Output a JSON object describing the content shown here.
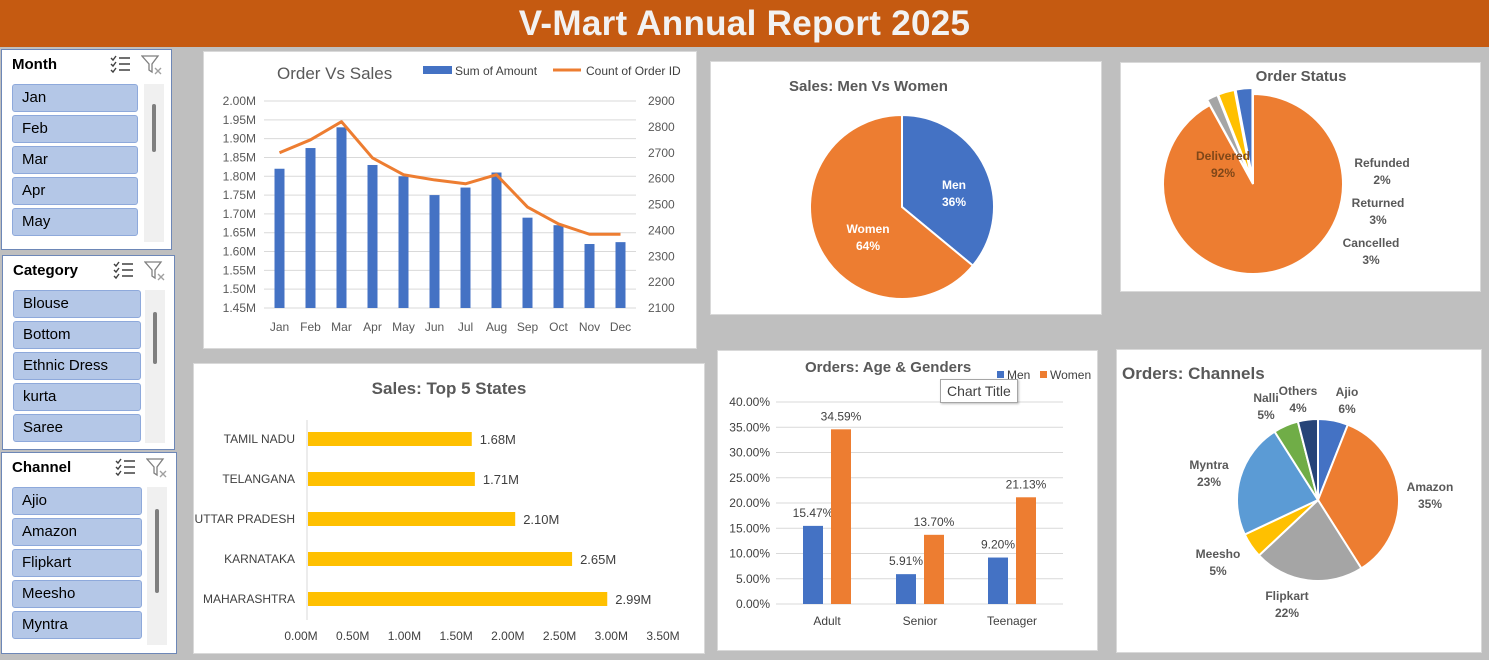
{
  "title": "V-Mart Annual Report 2025",
  "slicers": {
    "month": {
      "title": "Month",
      "items": [
        "Jan",
        "Feb",
        "Mar",
        "Apr",
        "May"
      ]
    },
    "category": {
      "title": "Category",
      "items": [
        "Blouse",
        "Bottom",
        "Ethnic Dress",
        "kurta",
        "Saree"
      ]
    },
    "channel": {
      "title": "Channel",
      "items": [
        "Ajio",
        "Amazon",
        "Flipkart",
        "Meesho",
        "Myntra"
      ]
    },
    "icons": [
      "multi-select-icon",
      "clear-filter-icon"
    ]
  },
  "tooltip": "Chart Title",
  "colors": {
    "header": "#c55a11",
    "blue": "#4472c4",
    "orange": "#ed7d31",
    "gold": "#ffc000",
    "gray": "#a5a5a5",
    "lightblue": "#5b9bd5",
    "green": "#70ad47",
    "navy": "#264478"
  },
  "chart_data": [
    {
      "id": "order-vs-sales",
      "type": "bar",
      "title": "Order Vs Sales",
      "categories": [
        "Jan",
        "Feb",
        "Mar",
        "Apr",
        "May",
        "Jun",
        "Jul",
        "Aug",
        "Sep",
        "Oct",
        "Nov",
        "Dec"
      ],
      "series": [
        {
          "name": "Sum of Amount",
          "type": "bar",
          "axis": "left",
          "values": [
            1.82,
            1.875,
            1.93,
            1.83,
            1.8,
            1.75,
            1.77,
            1.81,
            1.69,
            1.67,
            1.62,
            1.625
          ]
        },
        {
          "name": "Count of Order ID",
          "type": "line",
          "axis": "right",
          "values": [
            2700,
            2750,
            2820,
            2680,
            2615,
            2595,
            2580,
            2615,
            2490,
            2425,
            2385,
            2385
          ]
        }
      ],
      "y_left_ticks": [
        "1.45M",
        "1.50M",
        "1.55M",
        "1.60M",
        "1.65M",
        "1.70M",
        "1.75M",
        "1.80M",
        "1.85M",
        "1.90M",
        "1.95M",
        "2.00M"
      ],
      "y_right_ticks": [
        "2100",
        "2200",
        "2300",
        "2400",
        "2500",
        "2600",
        "2700",
        "2800",
        "2900"
      ],
      "ylim_left": [
        1.45,
        2.0
      ],
      "ylim_right": [
        2100,
        2900
      ],
      "legend": "top-right"
    },
    {
      "id": "sales-men-women",
      "type": "pie",
      "title": "Sales: Men Vs Women",
      "slices": [
        {
          "label": "Men",
          "pct_label": "36%",
          "value": 36,
          "color": "#4472c4"
        },
        {
          "label": "Women",
          "pct_label": "64%",
          "value": 64,
          "color": "#ed7d31"
        }
      ]
    },
    {
      "id": "order-status",
      "type": "pie",
      "title": "Order Status",
      "slices": [
        {
          "label": "Delivered",
          "pct_label": "92%",
          "value": 92,
          "color": "#ed7d31"
        },
        {
          "label": "Refunded",
          "pct_label": "2%",
          "value": 2,
          "color": "#a5a5a5"
        },
        {
          "label": "Returned",
          "pct_label": "3%",
          "value": 3,
          "color": "#ffc000"
        },
        {
          "label": "Cancelled",
          "pct_label": "3%",
          "value": 3,
          "color": "#4472c4"
        }
      ]
    },
    {
      "id": "top-5-states",
      "type": "bar",
      "orientation": "horizontal",
      "title": "Sales: Top 5 States",
      "categories": [
        "TAMIL NADU",
        "TELANGANA",
        "UTTAR PRADESH",
        "KARNATAKA",
        "MAHARASHTRA"
      ],
      "values": [
        1.68,
        1.71,
        2.1,
        2.65,
        2.99
      ],
      "value_labels": [
        "1.68M",
        "1.71M",
        "2.10M",
        "2.65M",
        "2.99M"
      ],
      "x_ticks": [
        "0.00M",
        "0.50M",
        "1.00M",
        "1.50M",
        "2.00M",
        "2.50M",
        "3.00M",
        "3.50M"
      ],
      "xlim": [
        0,
        3.5
      ]
    },
    {
      "id": "orders-age-genders",
      "type": "bar",
      "title": "Orders: Age & Genders",
      "categories": [
        "Adult",
        "Senior",
        "Teenager"
      ],
      "series": [
        {
          "name": "Men",
          "values": [
            15.47,
            5.91,
            9.2
          ],
          "labels": [
            "15.47%",
            "5.91%",
            "9.20%"
          ]
        },
        {
          "name": "Women",
          "values": [
            34.59,
            13.7,
            21.13
          ],
          "labels": [
            "34.59%",
            "13.70%",
            "21.13%"
          ]
        }
      ],
      "y_ticks": [
        "0.00%",
        "5.00%",
        "10.00%",
        "15.00%",
        "20.00%",
        "25.00%",
        "30.00%",
        "35.00%",
        "40.00%"
      ],
      "ylim": [
        0,
        40
      ],
      "legend": "top-right"
    },
    {
      "id": "orders-channels",
      "type": "pie",
      "title": "Orders: Channels",
      "slices": [
        {
          "label": "Ajio",
          "pct_label": "6%",
          "value": 6,
          "color": "#4472c4"
        },
        {
          "label": "Amazon",
          "pct_label": "35%",
          "value": 35,
          "color": "#ed7d31"
        },
        {
          "label": "Flipkart",
          "pct_label": "22%",
          "value": 22,
          "color": "#a5a5a5"
        },
        {
          "label": "Meesho",
          "pct_label": "5%",
          "value": 5,
          "color": "#ffc000"
        },
        {
          "label": "Myntra",
          "pct_label": "23%",
          "value": 23,
          "color": "#5b9bd5"
        },
        {
          "label": "Nalli",
          "pct_label": "5%",
          "value": 5,
          "color": "#70ad47"
        },
        {
          "label": "Others",
          "pct_label": "4%",
          "value": 4,
          "color": "#264478"
        }
      ]
    }
  ]
}
